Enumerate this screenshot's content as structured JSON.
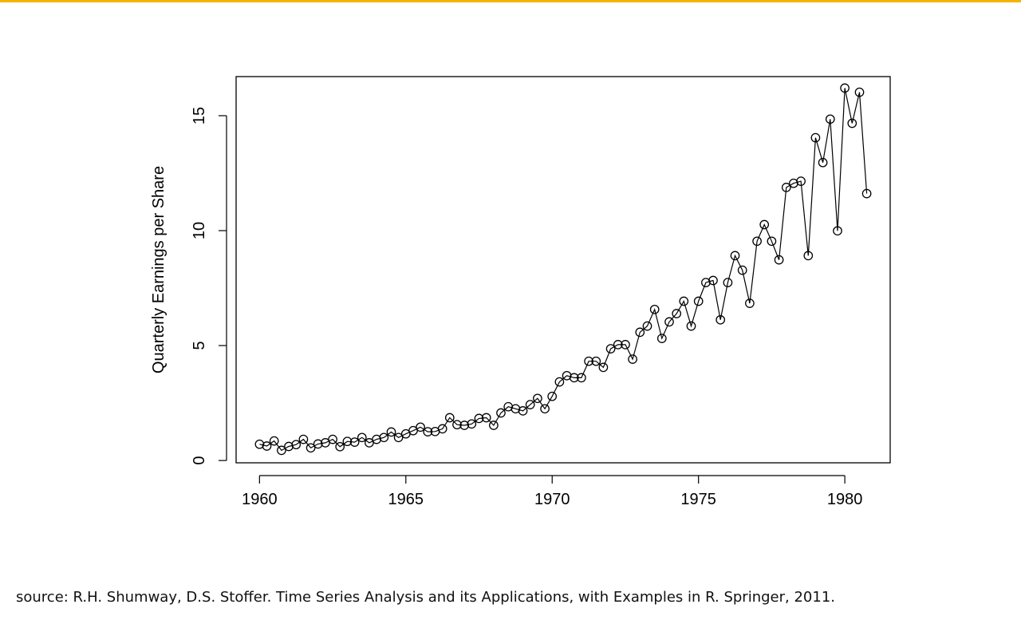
{
  "colors": {
    "top_rule": "#f5b301",
    "ink": "#000000"
  },
  "footer": {
    "source_text": "source: R.H. Shumway, D.S. Stoffer. Time Series Analysis and its Applications, with Examples in R. Springer, 2011."
  },
  "chart_data": {
    "type": "line",
    "markers": "open-circle",
    "title": "",
    "xlabel": "",
    "ylabel": "Quarterly Earnings per Share",
    "xlim": [
      1959.2,
      1981.55
    ],
    "ylim": [
      -0.1,
      16.7
    ],
    "xticks": [
      1960,
      1965,
      1970,
      1975,
      1980
    ],
    "yticks": [
      0,
      5,
      10,
      15
    ],
    "grid": false,
    "legend": "none",
    "x_start": 1960,
    "x_step": 0.25,
    "values": [
      0.71,
      0.63,
      0.85,
      0.44,
      0.61,
      0.69,
      0.92,
      0.55,
      0.72,
      0.77,
      0.92,
      0.6,
      0.83,
      0.8,
      1.0,
      0.77,
      0.92,
      1.0,
      1.24,
      1.0,
      1.16,
      1.3,
      1.45,
      1.25,
      1.26,
      1.38,
      1.86,
      1.56,
      1.53,
      1.59,
      1.83,
      1.86,
      1.53,
      2.07,
      2.34,
      2.25,
      2.16,
      2.43,
      2.7,
      2.25,
      2.79,
      3.42,
      3.69,
      3.6,
      3.6,
      4.32,
      4.32,
      4.05,
      4.86,
      5.04,
      5.04,
      4.41,
      5.58,
      5.85,
      6.57,
      5.31,
      6.03,
      6.39,
      6.93,
      5.85,
      6.93,
      7.74,
      7.83,
      6.12,
      7.74,
      8.91,
      8.28,
      6.84,
      9.54,
      10.26,
      9.54,
      8.73,
      11.88,
      12.06,
      12.15,
      8.91,
      14.04,
      12.96,
      14.85,
      9.99,
      16.2,
      14.67,
      16.02,
      11.61
    ]
  }
}
